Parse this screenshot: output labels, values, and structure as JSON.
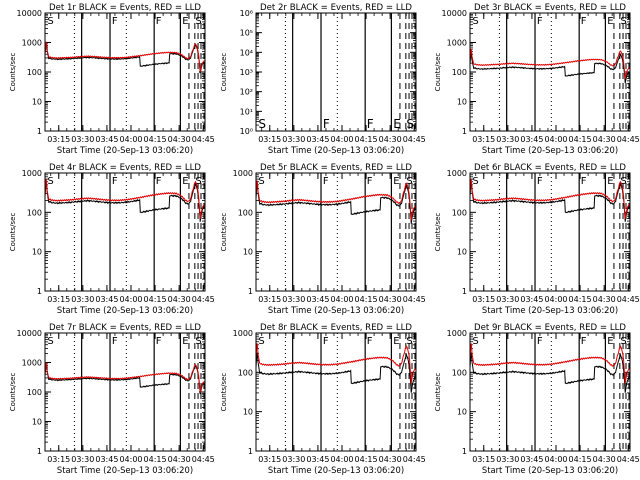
{
  "figure": {
    "background": "#ffffff"
  },
  "colors": {
    "events": "#000000",
    "lld": "#e00000",
    "axes": "#000000"
  },
  "chart_data": [
    {
      "type": "line",
      "title": "Det 1r  BLACK = Events, RED = LLD",
      "xlabel": "Start Time (20-Sep-13 03:06:20)",
      "ylabel": "Counts/sec",
      "yscale": "log",
      "ylim": [
        1,
        10000
      ],
      "ytick_labels": [
        "1",
        "10",
        "100",
        "1000",
        "10000"
      ],
      "xlim_seconds": [
        0,
        5980
      ],
      "xtick_labels": [
        "03:15",
        "03:30",
        "03:45",
        "04:00",
        "04:15",
        "04:30",
        "04:45"
      ],
      "events_level": 300,
      "lld_level": 330,
      "has_data": true
    },
    {
      "type": "line",
      "title": "Det 2r  BLACK = Events, RED = LLD",
      "xlabel": "Start Time (20-Sep-13 03:06:20)",
      "ylabel": "Counts/sec",
      "yscale": "log",
      "ylim": [
        1,
        1000000
      ],
      "ytick_labels": [
        "10⁰",
        "10¹",
        "10²",
        "10³",
        "10⁴",
        "10⁵",
        "10⁶"
      ],
      "xlim_seconds": [
        0,
        5980
      ],
      "xtick_labels": [
        "03:15",
        "03:30",
        "03:45",
        "04:00",
        "04:15",
        "04:30",
        "04:45"
      ],
      "events_level": 0,
      "lld_level": 0,
      "has_data": false
    },
    {
      "type": "line",
      "title": "Det 3r  BLACK = Events, RED = LLD",
      "xlabel": "Start Time (20-Sep-13 03:06:20)",
      "ylabel": "Counts/sec",
      "yscale": "log",
      "ylim": [
        1,
        10000
      ],
      "ytick_labels": [
        "1",
        "10",
        "100",
        "1000",
        "10000"
      ],
      "xlim_seconds": [
        0,
        5980
      ],
      "xtick_labels": [
        "03:15",
        "03:30",
        "03:45",
        "04:00",
        "04:15",
        "04:30",
        "04:45"
      ],
      "events_level": 140,
      "lld_level": 190,
      "has_data": true
    },
    {
      "type": "line",
      "title": "Det 4r  BLACK = Events, RED = LLD",
      "xlabel": "Start Time (20-Sep-13 03:06:20)",
      "ylabel": "Counts/sec",
      "yscale": "log",
      "ylim": [
        1,
        1000
      ],
      "ytick_labels": [
        "1",
        "10",
        "100",
        "1000"
      ],
      "xlim_seconds": [
        0,
        5980
      ],
      "xtick_labels": [
        "03:15",
        "03:30",
        "03:45",
        "04:00",
        "04:15",
        "04:30",
        "04:45"
      ],
      "events_level": 190,
      "lld_level": 220,
      "has_data": true
    },
    {
      "type": "line",
      "title": "Det 5r  BLACK = Events, RED = LLD",
      "xlabel": "Start Time (20-Sep-13 03:06:20)",
      "ylabel": "Counts/sec",
      "yscale": "log",
      "ylim": [
        1,
        1000
      ],
      "ytick_labels": [
        "1",
        "10",
        "100",
        "1000"
      ],
      "xlim_seconds": [
        0,
        5980
      ],
      "xtick_labels": [
        "03:15",
        "03:30",
        "03:45",
        "04:00",
        "04:15",
        "04:30",
        "04:45"
      ],
      "events_level": 170,
      "lld_level": 200,
      "has_data": true
    },
    {
      "type": "line",
      "title": "Det 6r  BLACK = Events, RED = LLD",
      "xlabel": "Start Time (20-Sep-13 03:06:20)",
      "ylabel": "Counts/sec",
      "yscale": "log",
      "ylim": [
        1,
        1000
      ],
      "ytick_labels": [
        "1",
        "10",
        "100",
        "1000"
      ],
      "xlim_seconds": [
        0,
        5980
      ],
      "xtick_labels": [
        "03:15",
        "03:30",
        "03:45",
        "04:00",
        "04:15",
        "04:30",
        "04:45"
      ],
      "events_level": 190,
      "lld_level": 220,
      "has_data": true
    },
    {
      "type": "line",
      "title": "Det 7r  BLACK = Events, RED = LLD",
      "xlabel": "Start Time (20-Sep-13 03:06:20)",
      "ylabel": "Counts/sec",
      "yscale": "log",
      "ylim": [
        1,
        10000
      ],
      "ytick_labels": [
        "1",
        "10",
        "100",
        "1000",
        "10000"
      ],
      "xlim_seconds": [
        0,
        5980
      ],
      "xtick_labels": [
        "03:15",
        "03:30",
        "03:45",
        "04:00",
        "04:15",
        "04:30",
        "04:45"
      ],
      "events_level": 280,
      "lld_level": 310,
      "has_data": true
    },
    {
      "type": "line",
      "title": "Det 8r  BLACK = Events, RED = LLD",
      "xlabel": "Start Time (20-Sep-13 03:06:20)",
      "ylabel": "Counts/sec",
      "yscale": "log",
      "ylim": [
        1,
        1000
      ],
      "ytick_labels": [
        "1",
        "10",
        "100",
        "1000"
      ],
      "xlim_seconds": [
        0,
        5980
      ],
      "xtick_labels": [
        "03:15",
        "03:30",
        "03:45",
        "04:00",
        "04:15",
        "04:30",
        "04:45"
      ],
      "events_level": 100,
      "lld_level": 170,
      "has_data": true
    },
    {
      "type": "line",
      "title": "Det 9r  BLACK = Events, RED = LLD",
      "xlabel": "Start Time (20-Sep-13 03:06:20)",
      "ylabel": "Counts/sec",
      "yscale": "log",
      "ylim": [
        1,
        1000
      ],
      "ytick_labels": [
        "1",
        "10",
        "100",
        "1000"
      ],
      "xlim_seconds": [
        0,
        5980
      ],
      "xtick_labels": [
        "03:15",
        "03:30",
        "03:45",
        "04:00",
        "04:15",
        "04:30",
        "04:45"
      ],
      "events_level": 100,
      "lld_level": 170,
      "has_data": true
    }
  ],
  "time_axis": {
    "xtick_seconds": [
      514,
      1414,
      2314,
      3214,
      4114,
      5014,
      5914
    ],
    "minor_step_seconds": 300
  },
  "markers": {
    "solid_line_seconds": [
      1370,
      2430,
      4080,
      5060
    ],
    "dotted_line_seconds": [
      1100,
      3040
    ],
    "dashed_line_seconds": [
      5380,
      5600,
      5720,
      5830,
      5940
    ],
    "letters": [
      {
        "text": "S",
        "t": 90
      },
      {
        "text": "F",
        "t": 2500
      },
      {
        "text": "F",
        "t": 4140
      },
      {
        "text": "E",
        "t": 5130
      },
      {
        "text": "S",
        "t": 5620
      }
    ]
  },
  "profile": {
    "t": [
      0,
      40,
      80,
      130,
      250,
      450,
      700,
      1000,
      1300,
      1600,
      1900,
      2200,
      2500,
      2800,
      3100,
      3400,
      3700,
      4000,
      4300,
      4600,
      4900,
      5100,
      5250,
      5350,
      5440,
      5540,
      5620,
      5700,
      5760,
      5800,
      5850,
      5920,
      5980
    ],
    "factor": [
      1.3,
      3.2,
      1.7,
      1.0,
      0.93,
      0.9,
      0.92,
      0.95,
      1.0,
      1.04,
      1.0,
      0.95,
      0.92,
      0.92,
      0.96,
      1.04,
      1.13,
      1.24,
      1.33,
      1.4,
      1.38,
      1.18,
      0.92,
      0.85,
      0.98,
      1.8,
      2.8,
      1.9,
      0.8,
      0.3,
      0.5,
      0.7,
      0.7
    ]
  },
  "events_dip": {
    "start_seconds": 3550,
    "end_seconds": 4650,
    "factor": 0.48
  }
}
